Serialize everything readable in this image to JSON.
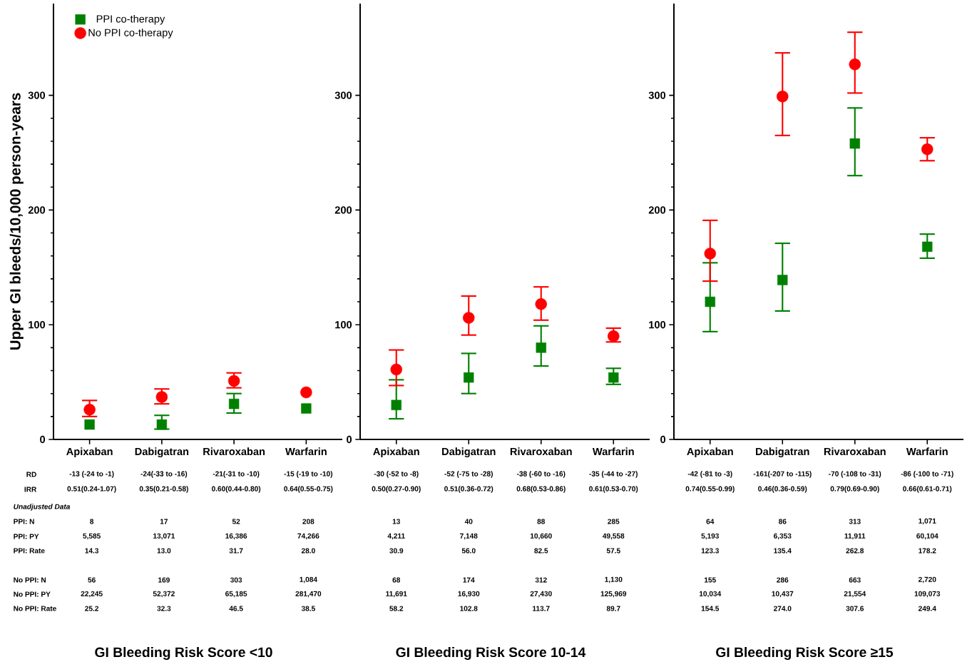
{
  "chart_data": [
    {
      "type": "scatter",
      "title": "GI Bleeding Risk Score <10",
      "ylabel": "Upper GI bleeds/10,000 person-years",
      "categories": [
        "Apixaban",
        "Dabigatran",
        "Rivaroxaban",
        "Warfarin"
      ],
      "ylim": [
        0,
        380
      ],
      "yticks": [
        0,
        100,
        200,
        300
      ],
      "legend": "top left",
      "series": [
        {
          "name": "PPI co-therapy",
          "color": "#008000",
          "marker": "square",
          "values": [
            13,
            13,
            31,
            27
          ],
          "errors": [
            null,
            [
              9,
              21
            ],
            [
              23,
              40
            ],
            null
          ]
        },
        {
          "name": "No PPI co-therapy",
          "color": "#ff0000",
          "marker": "circle",
          "values": [
            26,
            37,
            51,
            41
          ],
          "errors": [
            [
              20,
              34
            ],
            [
              31,
              44
            ],
            [
              45,
              58
            ],
            null
          ]
        }
      ],
      "annotations": [
        "RD",
        "-13 (-24 to -1)",
        "-24(-33 to -16)",
        "-21(-31 to -10)",
        "-15 (-19 to -10)",
        "IRR",
        "0.51(0.24-1.07)",
        "0.35(0.21-0.58)",
        "0.60(0.44-0.80)",
        "0.64(0.55-0.75)",
        "Unadjusted Data",
        "PPI: N",
        "8",
        "17",
        "52",
        "208",
        "PPI: PY",
        "5,585",
        "13,071",
        "16,386",
        "74,266",
        "PPI: Rate",
        "14.3",
        "13.0",
        "31.7",
        "28.0",
        "No PPI: N",
        "56",
        "169",
        "303",
        "1,084",
        "No PPI: PY",
        "22,245",
        "52,372",
        "65,185",
        "281,470",
        "No PPI: Rate",
        "25.2",
        "32.3",
        "46.5",
        "38.5"
      ]
    },
    {
      "type": "scatter",
      "title": "GI Bleeding Risk Score 10-14",
      "categories": [
        "Apixaban",
        "Dabigatran",
        "Rivaroxaban",
        "Warfarin"
      ],
      "ylim": [
        0,
        380
      ],
      "yticks": [
        0,
        100,
        200,
        300
      ],
      "series": [
        {
          "color": "#008000",
          "marker": "square",
          "values": [
            30,
            54,
            80,
            54
          ],
          "errors": [
            [
              18,
              52
            ],
            [
              40,
              75
            ],
            [
              64,
              99
            ],
            [
              48,
              62
            ]
          ]
        },
        {
          "color": "#ff0000",
          "marker": "circle",
          "values": [
            61,
            106,
            118,
            90
          ],
          "errors": [
            [
              47,
              78
            ],
            [
              91,
              125
            ],
            [
              104,
              133
            ],
            [
              85,
              97
            ]
          ]
        }
      ],
      "annotations": [
        "-30 (-52 to -8)",
        "-52 (-75 to -28)",
        "-38 (-60 to -16)",
        "-35 (-44 to -27)",
        "0.50(0.27-0.90)",
        "0.51(0.36-0.72)",
        "0.68(0.53-0.86)",
        "0.61(0.53-0.70)",
        "13",
        "40",
        "88",
        "285",
        "4,211",
        "7,148",
        "10,660",
        "49,558",
        "30.9",
        "56.0",
        "82.5",
        "57.5",
        "68",
        "174",
        "312",
        "1,130",
        "11,691",
        "16,930",
        "27,430",
        "125,969",
        "58.2",
        "102.8",
        "113.7",
        "89.7"
      ]
    },
    {
      "type": "scatter",
      "title": "GI Bleeding Risk Score ≥15",
      "categories": [
        "Apixaban",
        "Dabigatran",
        "Rivaroxaban",
        "Warfarin"
      ],
      "ylim": [
        0,
        380
      ],
      "yticks": [
        0,
        100,
        200,
        300
      ],
      "series": [
        {
          "color": "#008000",
          "marker": "square",
          "values": [
            120,
            139,
            258,
            168
          ],
          "errors": [
            [
              94,
              154
            ],
            [
              112,
              171
            ],
            [
              230,
              289
            ],
            [
              158,
              179
            ]
          ]
        },
        {
          "color": "#ff0000",
          "marker": "circle",
          "values": [
            162,
            299,
            327,
            253
          ],
          "errors": [
            [
              138,
              191
            ],
            [
              265,
              337
            ],
            [
              302,
              355
            ],
            [
              243,
              263
            ]
          ]
        }
      ],
      "annotations": [
        "-42 (-81 to -3)",
        "-161(-207 to -115)",
        "-70 (-108 to -31)",
        "-86 (-100 to -71)",
        "0.74(0.55-0.99)",
        "0.46(0.36-0.59)",
        "0.79(0.69-0.90)",
        "0.66(0.61-0.71)",
        "64",
        "86",
        "313",
        "1,071",
        "5,193",
        "6,353",
        "11,911",
        "60,104",
        "123.3",
        "135.4",
        "262.8",
        "178.2",
        "155",
        "286",
        "663",
        "2,720",
        "10,034",
        "10,437",
        "21,554",
        "109,073",
        "154.5",
        "274.0",
        "307.6",
        "249.4"
      ]
    }
  ]
}
